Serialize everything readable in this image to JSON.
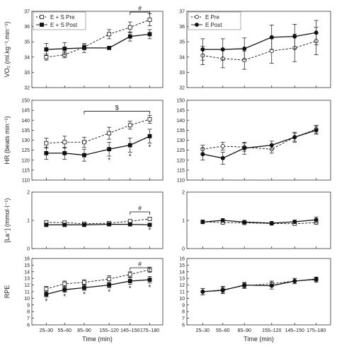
{
  "chart_data": [
    {
      "type": "line",
      "panel": "VO2 E+S",
      "ylabel": "VO₂ (ml.kg⁻¹.min⁻¹)",
      "ylim": [
        32,
        37
      ],
      "yticks": [
        "32",
        "33",
        "34",
        "35",
        "36",
        "37"
      ],
      "categories": [
        "25–30",
        "55–60",
        "85–90",
        "155–120",
        "145–150",
        "175–180"
      ],
      "legend_position": "top-left",
      "series": [
        {
          "name": "E + S Pre",
          "style": "open-square-dashed",
          "values": [
            34.0,
            34.15,
            34.65,
            35.5,
            35.95,
            36.45
          ],
          "err": [
            0.2,
            0.2,
            0.15,
            0.3,
            0.35,
            0.4
          ]
        },
        {
          "name": "E + S Post",
          "style": "filled-square-solid",
          "values": [
            34.5,
            34.55,
            34.6,
            34.6,
            35.35,
            35.5
          ],
          "err": [
            0.4,
            0.4,
            0.3,
            0.0,
            0.3,
            0.3
          ]
        }
      ],
      "annotations": [
        {
          "text": "#",
          "type": "bracket",
          "from": 4,
          "to": 5,
          "at": 36.95
        }
      ],
      "asterisks": []
    },
    {
      "type": "line",
      "panel": "VO2 E",
      "ylabel": "",
      "ylim": [
        32,
        37
      ],
      "yticks": [
        "32",
        "33",
        "34",
        "35",
        "36",
        "37"
      ],
      "categories": [
        "25–30",
        "55–60",
        "85–90",
        "155–120",
        "145–150",
        "175–180"
      ],
      "legend_position": "top-left",
      "series": [
        {
          "name": "E Pre",
          "style": "open-circle-dashed",
          "values": [
            34.1,
            33.9,
            33.8,
            34.4,
            34.6,
            35.05
          ],
          "err": [
            0.6,
            0.6,
            0.6,
            0.8,
            0.9,
            0.9
          ]
        },
        {
          "name": "E Post",
          "style": "filled-circle-solid",
          "values": [
            34.5,
            34.5,
            34.55,
            35.3,
            35.35,
            35.6
          ],
          "err": [
            0.7,
            0.7,
            0.7,
            0.8,
            0.8,
            0.8
          ]
        }
      ],
      "annotations": [],
      "asterisks": []
    },
    {
      "type": "line",
      "panel": "HR E+S",
      "ylabel": "HR (beats min⁻¹)",
      "ylim": [
        110,
        150
      ],
      "yticks": [
        "110",
        "115",
        "120",
        "125",
        "130",
        "135",
        "140",
        "145",
        "150"
      ],
      "categories": [
        "25–30",
        "55–60",
        "85–90",
        "155–120",
        "145–150",
        "175–180"
      ],
      "series": [
        {
          "name": "E + S Pre",
          "style": "open-square-dashed",
          "values": [
            128.5,
            129.0,
            129.0,
            133.5,
            137.5,
            140.5
          ],
          "err": [
            2.5,
            3.0,
            2.5,
            3.0,
            2.0,
            2.0
          ]
        },
        {
          "name": "E + S Post",
          "style": "filled-square-solid",
          "values": [
            123.5,
            123.5,
            122.5,
            125.5,
            127.5,
            132.0
          ],
          "err": [
            3.0,
            3.0,
            3.0,
            3.5,
            3.5,
            3.5
          ]
        }
      ],
      "annotations": [
        {
          "text": "$",
          "type": "bracket",
          "from": 2,
          "to": 5,
          "at": 144.5
        }
      ],
      "asterisks": [
        3,
        4,
        5
      ]
    },
    {
      "type": "line",
      "panel": "HR E",
      "ylabel": "",
      "ylim": [
        110,
        150
      ],
      "yticks": [
        "110",
        "115",
        "120",
        "125",
        "130",
        "135",
        "140",
        "145",
        "150"
      ],
      "categories": [
        "25–30",
        "55–60",
        "85–90",
        "155–120",
        "145–150",
        "175–180"
      ],
      "series": [
        {
          "name": "E Pre",
          "style": "open-circle-dashed",
          "values": [
            125.5,
            127.0,
            126.5,
            125.5,
            131.5,
            135.5
          ],
          "err": [
            2.0,
            2.0,
            2.0,
            2.0,
            2.0,
            2.0
          ]
        },
        {
          "name": "E Post",
          "style": "filled-circle-solid",
          "values": [
            123.0,
            121.0,
            126.0,
            127.5,
            131.5,
            135.0
          ],
          "err": [
            3.0,
            3.0,
            3.0,
            2.0,
            2.5,
            2.0
          ]
        }
      ],
      "annotations": [],
      "asterisks": []
    },
    {
      "type": "line",
      "panel": "La E+S",
      "ylabel": "[La⁻] (mmol·l⁻¹)",
      "ylim": [
        0,
        2
      ],
      "yticks": [
        "0",
        "1",
        "2"
      ],
      "categories": [
        "25–30",
        "55–60",
        "85–90",
        "155–120",
        "145–150",
        "175–180"
      ],
      "series": [
        {
          "name": "E + S Pre",
          "style": "open-square-dashed",
          "values": [
            0.93,
            0.92,
            0.88,
            0.9,
            0.97,
            1.05
          ],
          "err": [
            0.05,
            0.05,
            0.05,
            0.05,
            0.05,
            0.05
          ]
        },
        {
          "name": "E + S Post",
          "style": "filled-square-solid",
          "values": [
            0.84,
            0.84,
            0.84,
            0.86,
            0.86,
            0.84
          ],
          "err": [
            0.04,
            0.04,
            0.04,
            0.04,
            0.04,
            0.04
          ]
        }
      ],
      "annotations": [
        {
          "text": "#",
          "type": "bracket",
          "from": 4,
          "to": 5,
          "at": 1.3
        }
      ],
      "asterisks": [
        5
      ]
    },
    {
      "type": "line",
      "panel": "La E",
      "ylabel": "",
      "ylim": [
        0,
        2
      ],
      "yticks": [
        "0",
        "1",
        "2"
      ],
      "categories": [
        "25–30",
        "55–60",
        "85–90",
        "155–120",
        "145–150",
        "175–180"
      ],
      "series": [
        {
          "name": "E Pre",
          "style": "open-circle-dashed",
          "values": [
            0.95,
            0.92,
            0.91,
            0.89,
            0.88,
            0.92
          ],
          "err": [
            0.06,
            0.06,
            0.06,
            0.06,
            0.06,
            0.06
          ]
        },
        {
          "name": "E Post",
          "style": "filled-circle-solid",
          "values": [
            0.94,
            1.0,
            0.94,
            0.9,
            0.95,
            1.02
          ],
          "err": [
            0.06,
            0.06,
            0.06,
            0.06,
            0.06,
            0.1
          ]
        }
      ],
      "annotations": [],
      "asterisks": []
    },
    {
      "type": "line",
      "panel": "RPE E+S",
      "ylabel": "RPE",
      "xlabel": "Time (min)",
      "ylim": [
        6,
        16
      ],
      "yticks": [
        "6",
        "7",
        "8",
        "9",
        "10",
        "11",
        "12",
        "13",
        "14",
        "15",
        "16"
      ],
      "categories": [
        "25–30",
        "55–60",
        "85–90",
        "155–120",
        "145–150",
        "175–180"
      ],
      "series": [
        {
          "name": "E + S Pre",
          "style": "open-square-dashed",
          "values": [
            11.4,
            12.2,
            12.4,
            12.9,
            13.6,
            14.3
          ],
          "err": [
            0.4,
            0.4,
            0.4,
            0.5,
            0.4,
            0.4
          ]
        },
        {
          "name": "E + S Post",
          "style": "filled-square-solid",
          "values": [
            10.6,
            11.3,
            11.6,
            12.0,
            12.6,
            12.8
          ],
          "err": [
            0.4,
            0.4,
            0.4,
            0.4,
            0.5,
            0.5
          ]
        }
      ],
      "annotations": [
        {
          "text": "#",
          "type": "bracket",
          "from": 4,
          "to": 5,
          "at": 14.6
        }
      ],
      "asterisks": [
        0,
        1,
        2,
        3,
        4,
        5
      ]
    },
    {
      "type": "line",
      "panel": "RPE E",
      "ylabel": "",
      "xlabel": "Time (min)",
      "ylim": [
        6,
        16
      ],
      "yticks": [
        "6",
        "7",
        "8",
        "9",
        "10",
        "11",
        "12",
        "13",
        "14",
        "15",
        "16"
      ],
      "categories": [
        "25–30",
        "55–60",
        "85–90",
        "155–120",
        "145–150",
        "175–180"
      ],
      "series": [
        {
          "name": "E Pre",
          "style": "open-circle-dashed",
          "values": [
            11.0,
            11.3,
            11.9,
            12.2,
            12.6,
            12.8
          ],
          "err": [
            0.5,
            0.5,
            0.4,
            0.4,
            0.4,
            0.4
          ]
        },
        {
          "name": "E Post",
          "style": "filled-circle-solid",
          "values": [
            11.0,
            11.2,
            12.0,
            11.9,
            12.6,
            12.9
          ],
          "err": [
            0.5,
            0.5,
            0.4,
            0.5,
            0.4,
            0.3
          ]
        }
      ],
      "annotations": [],
      "asterisks": []
    }
  ]
}
